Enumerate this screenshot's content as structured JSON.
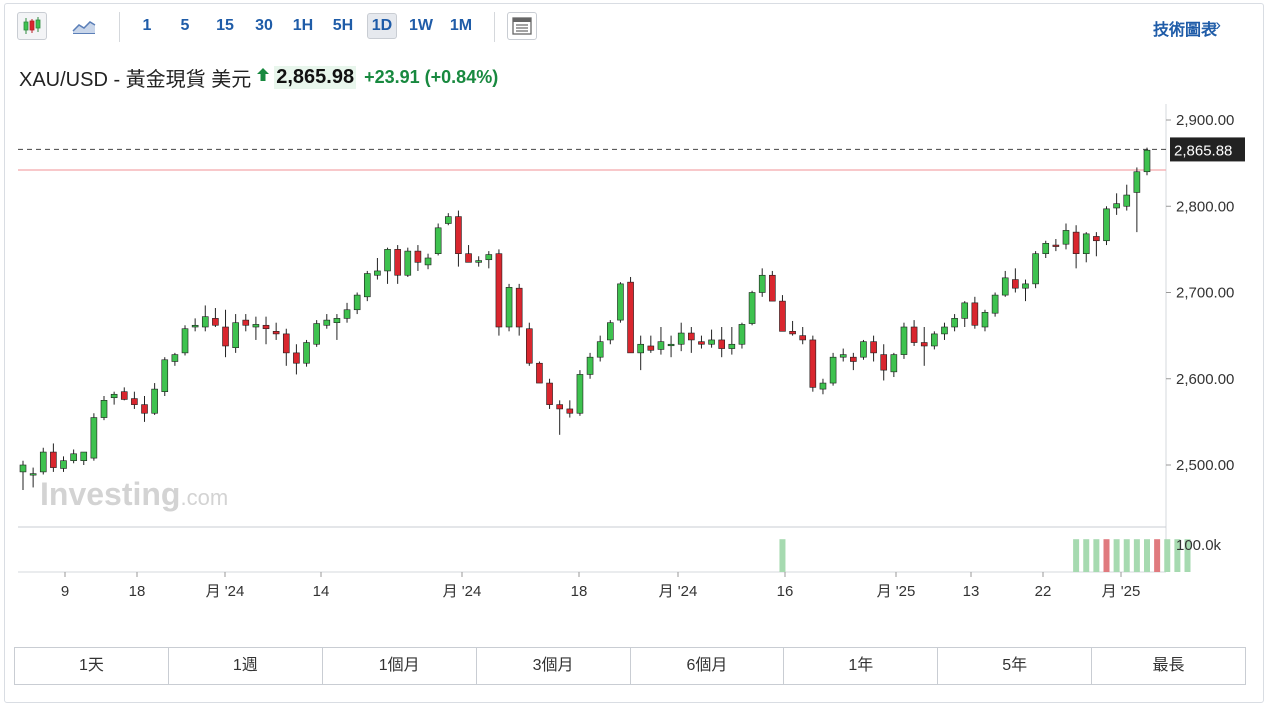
{
  "toolbar": {
    "timeframes": [
      "1",
      "5",
      "15",
      "30",
      "1H",
      "5H",
      "1D",
      "1W",
      "1M"
    ],
    "active_timeframe": "1D",
    "tech_link": "技術圖表",
    "tech_arrow": "»",
    "icons": [
      "candlestick-chart-icon",
      "area-chart-icon",
      "layout-icon"
    ]
  },
  "quote": {
    "title": "XAU/USD - 黃金現貨 美元",
    "price": "2,865.98",
    "change": "+23.91 (+0.84%)",
    "direction": "up"
  },
  "chart_data": {
    "type": "candlestick",
    "ylim": [
      2460,
      2910
    ],
    "yticks": [
      "2,900.00",
      "2,800.00",
      "2,700.00",
      "2,600.00",
      "2,500.00"
    ],
    "ytick_values": [
      2900,
      2800,
      2700,
      2600,
      2500
    ],
    "last_price_label": "2,865.88",
    "last_price": 2865.88,
    "reference_line": 2842,
    "xtick_labels": [
      "9",
      "18",
      "月 '24",
      "14",
      "月 '24",
      "18",
      "月 '24",
      "16",
      "月 '25",
      "13",
      "22",
      "月 '25"
    ],
    "volume_label": "100.0k",
    "watermark": "Investing.com",
    "colors": {
      "up": "#3ec24f",
      "down": "#d9262e",
      "up_volume": "#a6dab0",
      "down_volume": "#e07a7e"
    },
    "ohlc": [
      [
        2492,
        2505,
        2471,
        2500
      ],
      [
        2490,
        2497,
        2474,
        2490
      ],
      [
        2492,
        2520,
        2489,
        2515
      ],
      [
        2515,
        2525,
        2492,
        2497
      ],
      [
        2496,
        2510,
        2492,
        2505
      ],
      [
        2505,
        2518,
        2502,
        2513
      ],
      [
        2505,
        2515,
        2500,
        2515
      ],
      [
        2508,
        2560,
        2505,
        2555
      ],
      [
        2555,
        2580,
        2552,
        2575
      ],
      [
        2578,
        2585,
        2570,
        2582
      ],
      [
        2585,
        2590,
        2575,
        2576
      ],
      [
        2577,
        2585,
        2565,
        2570
      ],
      [
        2570,
        2580,
        2550,
        2560
      ],
      [
        2560,
        2595,
        2558,
        2588
      ],
      [
        2585,
        2625,
        2580,
        2622
      ],
      [
        2620,
        2630,
        2615,
        2628
      ],
      [
        2630,
        2662,
        2627,
        2658
      ],
      [
        2660,
        2670,
        2655,
        2662
      ],
      [
        2660,
        2685,
        2655,
        2672
      ],
      [
        2670,
        2682,
        2660,
        2662
      ],
      [
        2660,
        2680,
        2625,
        2638
      ],
      [
        2636,
        2675,
        2630,
        2665
      ],
      [
        2668,
        2675,
        2655,
        2662
      ],
      [
        2660,
        2672,
        2645,
        2663
      ],
      [
        2662,
        2672,
        2640,
        2658
      ],
      [
        2655,
        2665,
        2645,
        2652
      ],
      [
        2652,
        2658,
        2615,
        2630
      ],
      [
        2630,
        2640,
        2605,
        2618
      ],
      [
        2618,
        2645,
        2614,
        2642
      ],
      [
        2640,
        2668,
        2637,
        2664
      ],
      [
        2662,
        2675,
        2658,
        2668
      ],
      [
        2665,
        2675,
        2645,
        2670
      ],
      [
        2670,
        2688,
        2665,
        2680
      ],
      [
        2680,
        2700,
        2675,
        2697
      ],
      [
        2695,
        2725,
        2690,
        2722
      ],
      [
        2720,
        2740,
        2715,
        2725
      ],
      [
        2725,
        2752,
        2710,
        2750
      ],
      [
        2750,
        2755,
        2710,
        2720
      ],
      [
        2720,
        2752,
        2718,
        2748
      ],
      [
        2748,
        2755,
        2725,
        2735
      ],
      [
        2732,
        2745,
        2727,
        2740
      ],
      [
        2745,
        2780,
        2743,
        2775
      ],
      [
        2780,
        2792,
        2778,
        2788
      ],
      [
        2788,
        2795,
        2730,
        2745
      ],
      [
        2745,
        2755,
        2735,
        2735
      ],
      [
        2735,
        2742,
        2730,
        2737
      ],
      [
        2738,
        2748,
        2728,
        2744
      ],
      [
        2745,
        2750,
        2650,
        2660
      ],
      [
        2660,
        2710,
        2655,
        2706
      ],
      [
        2705,
        2710,
        2650,
        2660
      ],
      [
        2658,
        2665,
        2615,
        2618
      ],
      [
        2618,
        2620,
        2595,
        2595
      ],
      [
        2595,
        2600,
        2565,
        2570
      ],
      [
        2570,
        2575,
        2535,
        2565
      ],
      [
        2565,
        2575,
        2555,
        2560
      ],
      [
        2560,
        2610,
        2557,
        2605
      ],
      [
        2605,
        2630,
        2600,
        2625
      ],
      [
        2625,
        2650,
        2620,
        2643
      ],
      [
        2645,
        2668,
        2640,
        2665
      ],
      [
        2668,
        2712,
        2665,
        2710
      ],
      [
        2712,
        2718,
        2630,
        2630
      ],
      [
        2630,
        2650,
        2610,
        2640
      ],
      [
        2638,
        2650,
        2630,
        2633
      ],
      [
        2634,
        2660,
        2628,
        2643
      ],
      [
        2640,
        2650,
        2625,
        2640
      ],
      [
        2640,
        2665,
        2632,
        2653
      ],
      [
        2653,
        2660,
        2630,
        2645
      ],
      [
        2643,
        2650,
        2635,
        2640
      ],
      [
        2640,
        2657,
        2636,
        2645
      ],
      [
        2645,
        2660,
        2625,
        2635
      ],
      [
        2635,
        2660,
        2628,
        2640
      ],
      [
        2640,
        2665,
        2635,
        2663
      ],
      [
        2664,
        2702,
        2662,
        2700
      ],
      [
        2700,
        2728,
        2695,
        2720
      ],
      [
        2720,
        2725,
        2690,
        2690
      ],
      [
        2690,
        2697,
        2655,
        2655
      ],
      [
        2655,
        2667,
        2650,
        2652
      ],
      [
        2650,
        2660,
        2640,
        2645
      ],
      [
        2645,
        2650,
        2585,
        2590
      ],
      [
        2588,
        2600,
        2582,
        2595
      ],
      [
        2595,
        2630,
        2592,
        2625
      ],
      [
        2625,
        2635,
        2620,
        2628
      ],
      [
        2625,
        2630,
        2610,
        2620
      ],
      [
        2625,
        2645,
        2622,
        2643
      ],
      [
        2643,
        2650,
        2620,
        2630
      ],
      [
        2628,
        2640,
        2598,
        2610
      ],
      [
        2608,
        2630,
        2602,
        2628
      ],
      [
        2628,
        2665,
        2623,
        2660
      ],
      [
        2660,
        2668,
        2638,
        2642
      ],
      [
        2642,
        2660,
        2615,
        2638
      ],
      [
        2638,
        2655,
        2634,
        2652
      ],
      [
        2652,
        2665,
        2645,
        2660
      ],
      [
        2660,
        2675,
        2655,
        2670
      ],
      [
        2670,
        2690,
        2660,
        2688
      ],
      [
        2688,
        2695,
        2658,
        2662
      ],
      [
        2660,
        2680,
        2655,
        2677
      ],
      [
        2676,
        2700,
        2672,
        2697
      ],
      [
        2697,
        2725,
        2695,
        2717
      ],
      [
        2715,
        2728,
        2700,
        2705
      ],
      [
        2705,
        2715,
        2690,
        2710
      ],
      [
        2710,
        2748,
        2705,
        2745
      ],
      [
        2745,
        2760,
        2740,
        2757
      ],
      [
        2755,
        2762,
        2748,
        2754
      ],
      [
        2756,
        2780,
        2750,
        2772
      ],
      [
        2770,
        2778,
        2728,
        2745
      ],
      [
        2745,
        2770,
        2735,
        2768
      ],
      [
        2765,
        2770,
        2742,
        2760
      ],
      [
        2760,
        2800,
        2755,
        2797
      ],
      [
        2798,
        2815,
        2790,
        2803
      ],
      [
        2800,
        2825,
        2795,
        2813
      ],
      [
        2816,
        2845,
        2770,
        2840
      ],
      [
        2840,
        2868,
        2836,
        2865
      ]
    ],
    "volume": [
      {
        "index": 75,
        "value": 0.8,
        "dir": "up"
      },
      {
        "index": 104,
        "value": 0.8,
        "dir": "up"
      },
      {
        "index": 105,
        "value": 0.8,
        "dir": "up"
      },
      {
        "index": 106,
        "value": 0.8,
        "dir": "up"
      },
      {
        "index": 107,
        "value": 0.8,
        "dir": "down"
      },
      {
        "index": 108,
        "value": 0.8,
        "dir": "up"
      },
      {
        "index": 109,
        "value": 0.8,
        "dir": "up"
      },
      {
        "index": 110,
        "value": 0.8,
        "dir": "up"
      },
      {
        "index": 111,
        "value": 0.8,
        "dir": "up"
      },
      {
        "index": 112,
        "value": 0.8,
        "dir": "down"
      },
      {
        "index": 113,
        "value": 0.8,
        "dir": "up"
      },
      {
        "index": 114,
        "value": 0.8,
        "dir": "up"
      },
      {
        "index": 115,
        "value": 0.8,
        "dir": "up"
      }
    ]
  },
  "ranges": [
    "1天",
    "1週",
    "1個月",
    "3個月",
    "6個月",
    "1年",
    "5年",
    "最長"
  ]
}
